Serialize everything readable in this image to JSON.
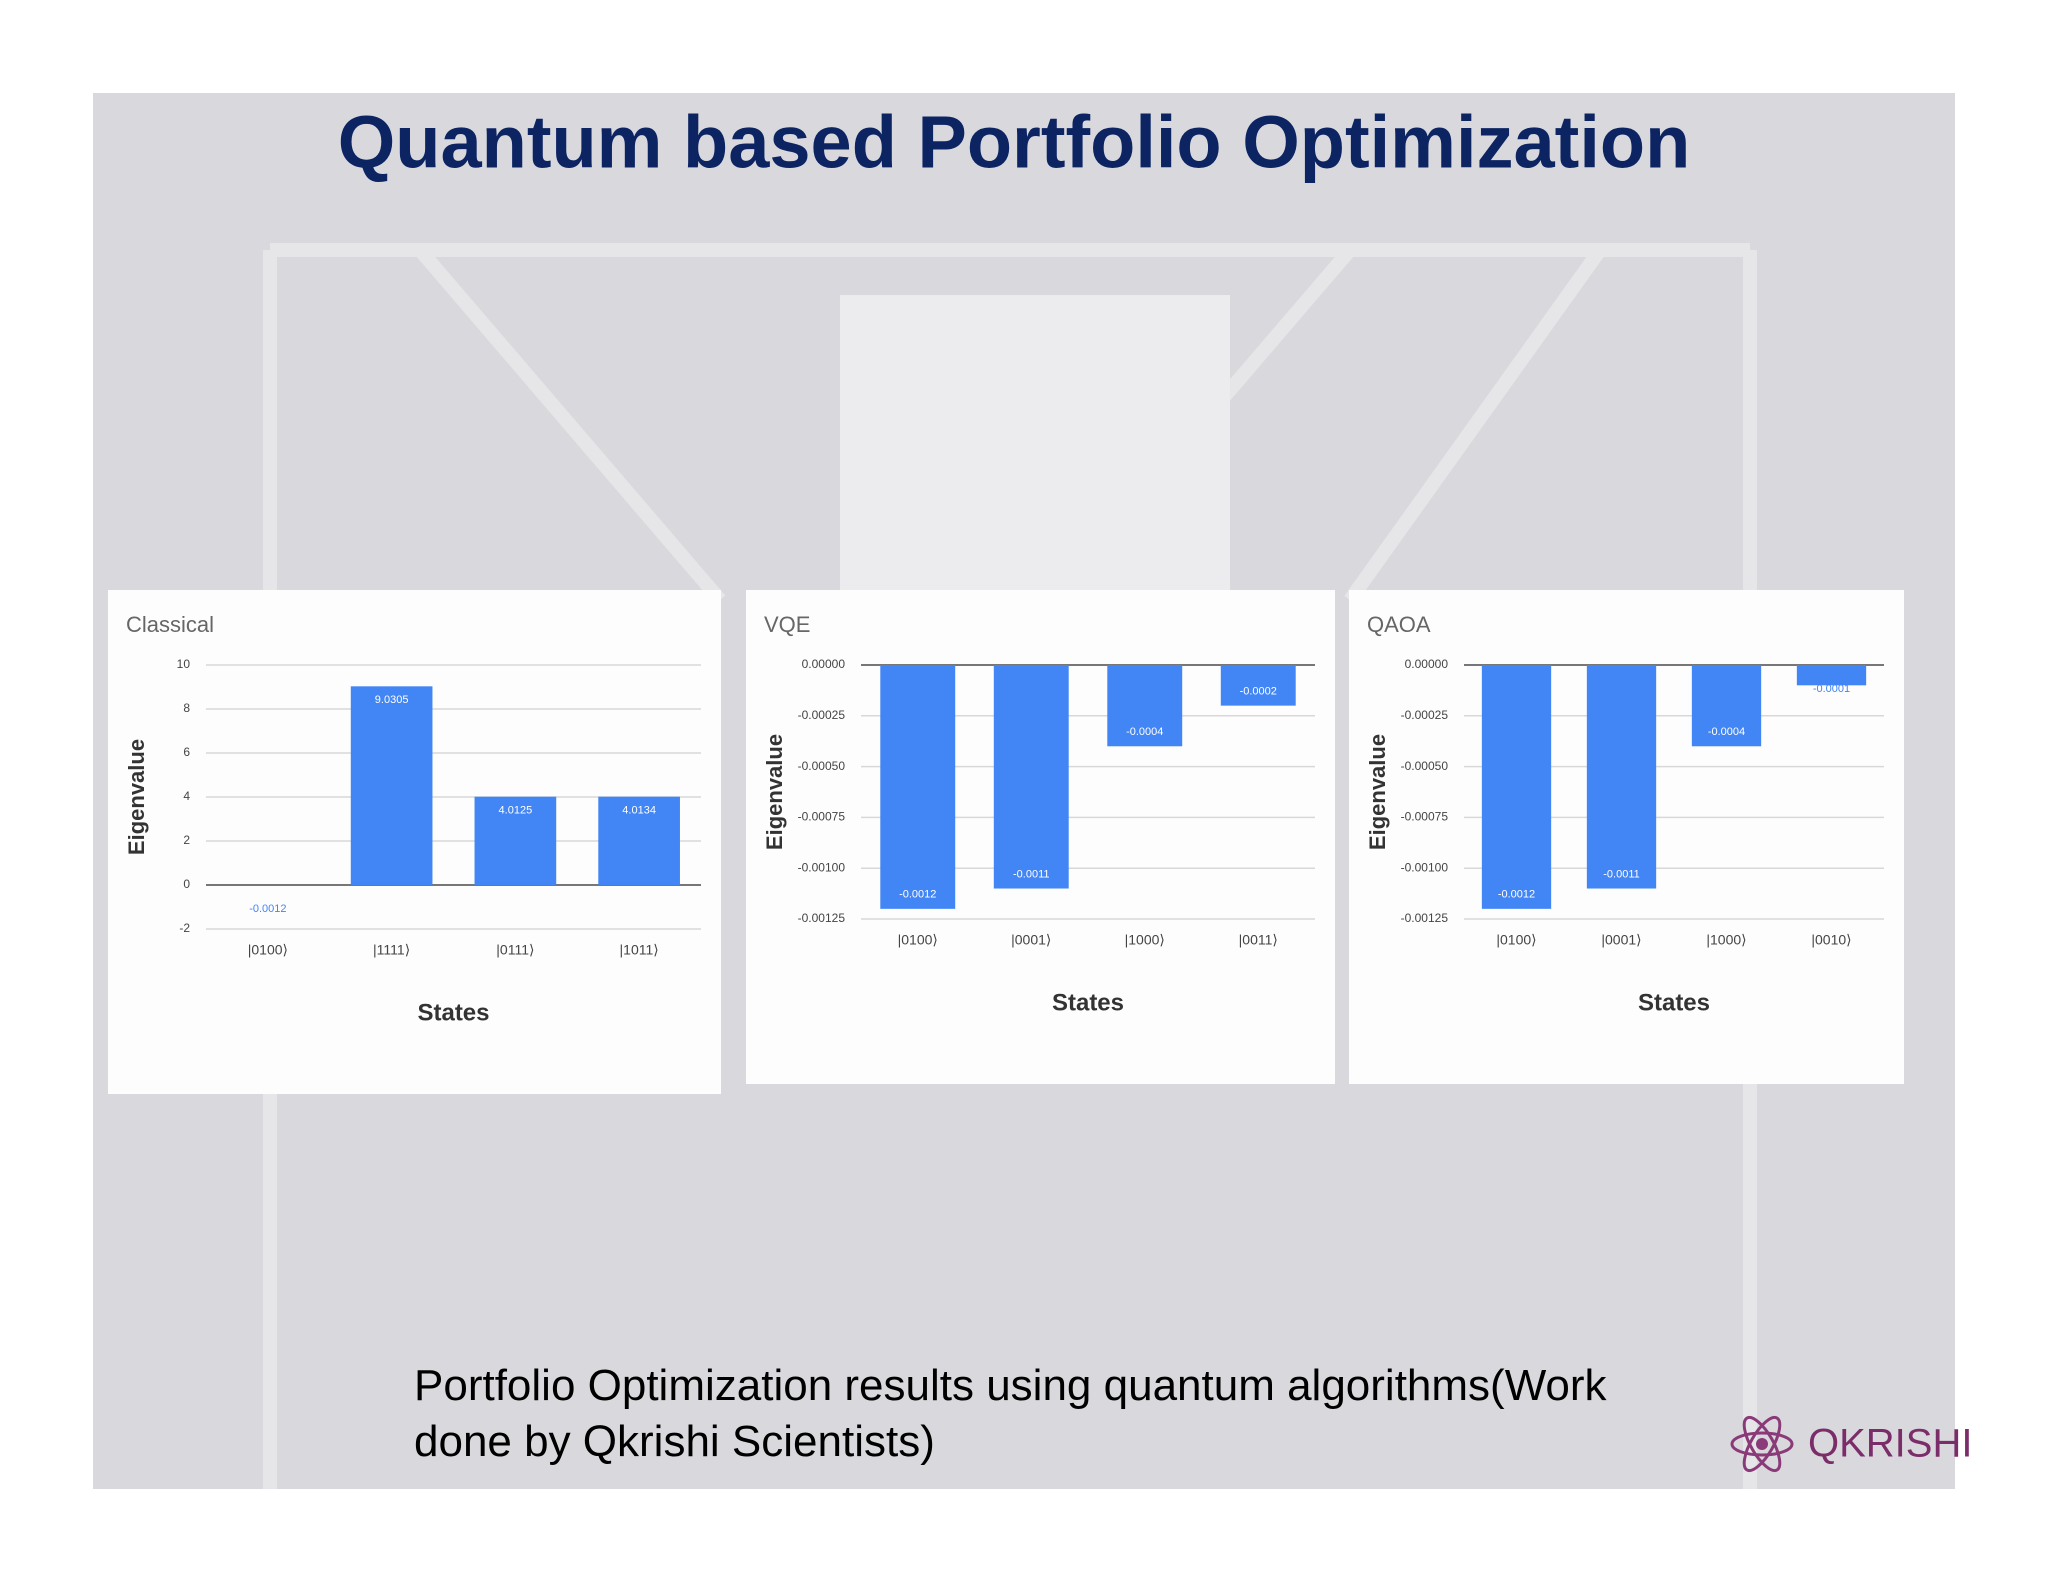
{
  "title": "Quantum based Portfolio Optimization",
  "caption": "Portfolio Optimization results using quantum algorithms(Work done by Qkrishi Scientists)",
  "logo": "QKRISHI",
  "chart_data": [
    {
      "type": "bar",
      "title": "Classical",
      "x_label": "States",
      "y_label": "Eigenvalue",
      "categories": [
        "|0100⟩",
        "|1111⟩",
        "|0111⟩",
        "|1011⟩"
      ],
      "values": [
        -0.0012,
        9.0305,
        4.0125,
        4.0134
      ],
      "color": "#4285f4",
      "ylim": [
        -2,
        10
      ],
      "yticks": [
        -2,
        0,
        2,
        4,
        6,
        8,
        10
      ],
      "grid": true
    },
    {
      "type": "bar",
      "title": "VQE",
      "x_label": "States",
      "y_label": "Eigenvalue",
      "categories": [
        "|0100⟩",
        "|0001⟩",
        "|1000⟩",
        "|0011⟩"
      ],
      "values": [
        -0.0012,
        -0.0011,
        -0.0004,
        -0.0002
      ],
      "color": "#4285f4",
      "ylim": [
        -0.00125,
        0
      ],
      "yticks": [
        {
          "value": -0.00125,
          "label": "-0.00125"
        },
        {
          "value": -0.001,
          "label": "-0.00100"
        },
        {
          "value": -0.00075,
          "label": "-0.00075"
        },
        {
          "value": -0.0005,
          "label": "-0.00050"
        },
        {
          "value": -0.00025,
          "label": "-0.00025"
        },
        {
          "value": 0,
          "label": "0.00000"
        }
      ],
      "grid": true
    },
    {
      "type": "bar",
      "title": "QAOA",
      "x_label": "States",
      "y_label": "Eigenvalue",
      "categories": [
        "|0100⟩",
        "|0001⟩",
        "|1000⟩",
        "|0010⟩"
      ],
      "values": [
        -0.0012,
        -0.0011,
        -0.0004,
        -0.0001
      ],
      "color": "#4285f4",
      "ylim": [
        -0.00125,
        0
      ],
      "yticks": [
        {
          "value": -0.00125,
          "label": "-0.00125"
        },
        {
          "value": -0.001,
          "label": "-0.00100"
        },
        {
          "value": -0.00075,
          "label": "-0.00075"
        },
        {
          "value": -0.0005,
          "label": "-0.00050"
        },
        {
          "value": -0.00025,
          "label": "-0.00025"
        },
        {
          "value": 0,
          "label": "0.00000"
        }
      ],
      "grid": true
    }
  ]
}
